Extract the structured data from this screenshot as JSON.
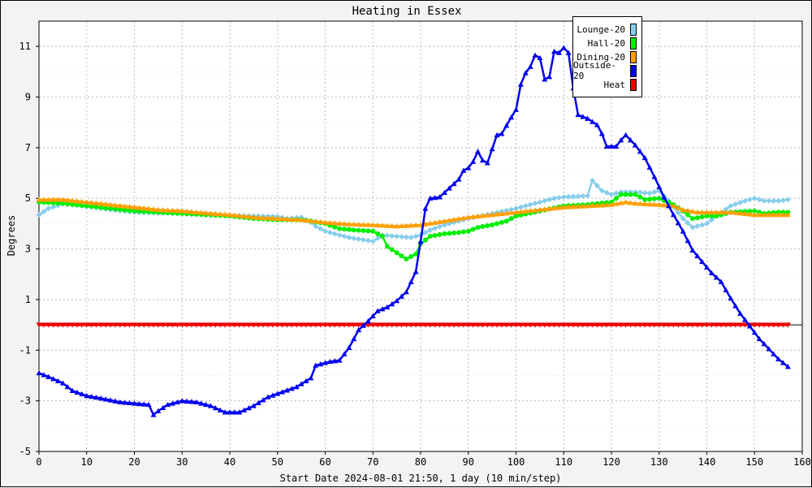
{
  "chart_data": {
    "type": "line",
    "title": "Heating in Essex",
    "xlabel": "Start Date 2024-08-01 21:50, 1 day (10 min/step)",
    "ylabel": "Degrees",
    "xlim": [
      0,
      160
    ],
    "ylim": [
      -5,
      12
    ],
    "x_ticks": [
      0,
      10,
      20,
      30,
      40,
      50,
      60,
      70,
      80,
      90,
      100,
      110,
      120,
      130,
      140,
      150,
      160
    ],
    "y_ticks": [
      -5,
      -3,
      -1,
      1,
      3,
      5,
      7,
      9,
      11
    ],
    "grid": true,
    "legend_position": "top-right",
    "series": [
      {
        "name": "Lounge-20",
        "color": "#87ceeb",
        "marker": "diamond",
        "points": [
          [
            0,
            4.35
          ],
          [
            2,
            4.6
          ],
          [
            5,
            4.78
          ],
          [
            10,
            4.68
          ],
          [
            15,
            4.55
          ],
          [
            20,
            4.45
          ],
          [
            25,
            4.42
          ],
          [
            30,
            4.4
          ],
          [
            35,
            4.35
          ],
          [
            40,
            4.32
          ],
          [
            45,
            4.3
          ],
          [
            50,
            4.28
          ],
          [
            52,
            4.2
          ],
          [
            55,
            4.25
          ],
          [
            57,
            4.05
          ],
          [
            58,
            3.9
          ],
          [
            60,
            3.7
          ],
          [
            65,
            3.45
          ],
          [
            70,
            3.3
          ],
          [
            72,
            3.55
          ],
          [
            75,
            3.5
          ],
          [
            78,
            3.45
          ],
          [
            80,
            3.55
          ],
          [
            82,
            3.75
          ],
          [
            85,
            3.95
          ],
          [
            88,
            4.1
          ],
          [
            90,
            4.2
          ],
          [
            95,
            4.4
          ],
          [
            100,
            4.6
          ],
          [
            105,
            4.85
          ],
          [
            108,
            5.0
          ],
          [
            110,
            5.05
          ],
          [
            115,
            5.1
          ],
          [
            116,
            5.7
          ],
          [
            118,
            5.3
          ],
          [
            120,
            5.15
          ],
          [
            122,
            5.25
          ],
          [
            125,
            5.25
          ],
          [
            128,
            5.2
          ],
          [
            130,
            5.3
          ],
          [
            132,
            4.9
          ],
          [
            135,
            4.2
          ],
          [
            137,
            3.85
          ],
          [
            140,
            4.0
          ],
          [
            142,
            4.3
          ],
          [
            145,
            4.7
          ],
          [
            148,
            4.9
          ],
          [
            150,
            5.0
          ],
          [
            152,
            4.9
          ],
          [
            155,
            4.9
          ],
          [
            157,
            4.95
          ]
        ]
      },
      {
        "name": "Hall-20",
        "color": "#00ee00",
        "marker": "circle",
        "points": [
          [
            0,
            4.85
          ],
          [
            5,
            4.8
          ],
          [
            10,
            4.7
          ],
          [
            15,
            4.6
          ],
          [
            20,
            4.5
          ],
          [
            25,
            4.45
          ],
          [
            30,
            4.4
          ],
          [
            35,
            4.35
          ],
          [
            40,
            4.3
          ],
          [
            45,
            4.2
          ],
          [
            50,
            4.15
          ],
          [
            55,
            4.15
          ],
          [
            57,
            4.1
          ],
          [
            60,
            4.0
          ],
          [
            63,
            3.8
          ],
          [
            66,
            3.75
          ],
          [
            70,
            3.7
          ],
          [
            72,
            3.5
          ],
          [
            73,
            3.1
          ],
          [
            75,
            2.85
          ],
          [
            77,
            2.6
          ],
          [
            79,
            2.8
          ],
          [
            80,
            3.2
          ],
          [
            82,
            3.5
          ],
          [
            85,
            3.6
          ],
          [
            88,
            3.65
          ],
          [
            90,
            3.7
          ],
          [
            92,
            3.85
          ],
          [
            95,
            3.95
          ],
          [
            98,
            4.1
          ],
          [
            100,
            4.3
          ],
          [
            105,
            4.5
          ],
          [
            110,
            4.7
          ],
          [
            115,
            4.75
          ],
          [
            120,
            4.85
          ],
          [
            122,
            5.15
          ],
          [
            125,
            5.15
          ],
          [
            127,
            4.95
          ],
          [
            130,
            5.0
          ],
          [
            133,
            4.75
          ],
          [
            135,
            4.5
          ],
          [
            137,
            4.2
          ],
          [
            140,
            4.3
          ],
          [
            142,
            4.3
          ],
          [
            145,
            4.45
          ],
          [
            150,
            4.5
          ],
          [
            152,
            4.4
          ],
          [
            155,
            4.45
          ],
          [
            157,
            4.45
          ]
        ]
      },
      {
        "name": "Dining-20",
        "color": "#ff9f00",
        "marker": "triangle-up",
        "points": [
          [
            0,
            4.95
          ],
          [
            5,
            4.95
          ],
          [
            10,
            4.85
          ],
          [
            15,
            4.75
          ],
          [
            20,
            4.65
          ],
          [
            25,
            4.55
          ],
          [
            30,
            4.5
          ],
          [
            35,
            4.42
          ],
          [
            40,
            4.35
          ],
          [
            45,
            4.25
          ],
          [
            50,
            4.2
          ],
          [
            55,
            4.15
          ],
          [
            60,
            4.05
          ],
          [
            65,
            3.98
          ],
          [
            70,
            3.95
          ],
          [
            75,
            3.9
          ],
          [
            80,
            3.95
          ],
          [
            85,
            4.1
          ],
          [
            90,
            4.25
          ],
          [
            95,
            4.35
          ],
          [
            100,
            4.45
          ],
          [
            105,
            4.55
          ],
          [
            110,
            4.65
          ],
          [
            115,
            4.7
          ],
          [
            120,
            4.75
          ],
          [
            123,
            4.85
          ],
          [
            125,
            4.8
          ],
          [
            130,
            4.75
          ],
          [
            133,
            4.7
          ],
          [
            135,
            4.55
          ],
          [
            138,
            4.45
          ],
          [
            140,
            4.45
          ],
          [
            145,
            4.45
          ],
          [
            150,
            4.35
          ],
          [
            155,
            4.35
          ],
          [
            157,
            4.35
          ]
        ]
      },
      {
        "name": "Outside-20",
        "color": "#0000ee",
        "marker": "triangle-up",
        "points": [
          [
            0,
            -1.9
          ],
          [
            2,
            -2.05
          ],
          [
            5,
            -2.3
          ],
          [
            7,
            -2.6
          ],
          [
            10,
            -2.8
          ],
          [
            13,
            -2.9
          ],
          [
            17,
            -3.05
          ],
          [
            20,
            -3.1
          ],
          [
            23,
            -3.15
          ],
          [
            24,
            -3.55
          ],
          [
            25,
            -3.4
          ],
          [
            27,
            -3.15
          ],
          [
            30,
            -3.0
          ],
          [
            33,
            -3.05
          ],
          [
            36,
            -3.2
          ],
          [
            39,
            -3.45
          ],
          [
            42,
            -3.45
          ],
          [
            45,
            -3.2
          ],
          [
            48,
            -2.85
          ],
          [
            51,
            -2.65
          ],
          [
            54,
            -2.45
          ],
          [
            57,
            -2.1
          ],
          [
            58,
            -1.6
          ],
          [
            61,
            -1.45
          ],
          [
            63,
            -1.4
          ],
          [
            65,
            -0.9
          ],
          [
            67,
            -0.2
          ],
          [
            69,
            0.15
          ],
          [
            71,
            0.55
          ],
          [
            73,
            0.7
          ],
          [
            75,
            0.95
          ],
          [
            77,
            1.3
          ],
          [
            79,
            2.1
          ],
          [
            80,
            3.3
          ],
          [
            81,
            4.6
          ],
          [
            82,
            5.0
          ],
          [
            84,
            5.05
          ],
          [
            86,
            5.4
          ],
          [
            88,
            5.75
          ],
          [
            89,
            6.1
          ],
          [
            90,
            6.2
          ],
          [
            91,
            6.45
          ],
          [
            92,
            6.85
          ],
          [
            93,
            6.5
          ],
          [
            94,
            6.4
          ],
          [
            95,
            6.95
          ],
          [
            96,
            7.5
          ],
          [
            97,
            7.55
          ],
          [
            99,
            8.2
          ],
          [
            100,
            8.5
          ],
          [
            101,
            9.5
          ],
          [
            102,
            9.95
          ],
          [
            103,
            10.2
          ],
          [
            104,
            10.65
          ],
          [
            105,
            10.55
          ],
          [
            106,
            9.7
          ],
          [
            107,
            9.8
          ],
          [
            108,
            10.8
          ],
          [
            109,
            10.75
          ],
          [
            110,
            10.95
          ],
          [
            111,
            10.75
          ],
          [
            112,
            9.35
          ],
          [
            113,
            8.3
          ],
          [
            115,
            8.15
          ],
          [
            117,
            7.9
          ],
          [
            118,
            7.55
          ],
          [
            119,
            7.05
          ],
          [
            121,
            7.05
          ],
          [
            122,
            7.3
          ],
          [
            123,
            7.5
          ],
          [
            125,
            7.1
          ],
          [
            127,
            6.6
          ],
          [
            129,
            5.85
          ],
          [
            131,
            5.05
          ],
          [
            133,
            4.35
          ],
          [
            135,
            3.7
          ],
          [
            137,
            2.95
          ],
          [
            139,
            2.5
          ],
          [
            141,
            2.05
          ],
          [
            143,
            1.7
          ],
          [
            145,
            1.05
          ],
          [
            147,
            0.45
          ],
          [
            149,
            -0.05
          ],
          [
            151,
            -0.55
          ],
          [
            153,
            -0.95
          ],
          [
            155,
            -1.35
          ],
          [
            157,
            -1.65
          ]
        ]
      },
      {
        "name": "Heat",
        "color": "#ee0000",
        "marker": "triangle-down",
        "points": [
          [
            0,
            0
          ],
          [
            157,
            0
          ]
        ]
      }
    ]
  }
}
